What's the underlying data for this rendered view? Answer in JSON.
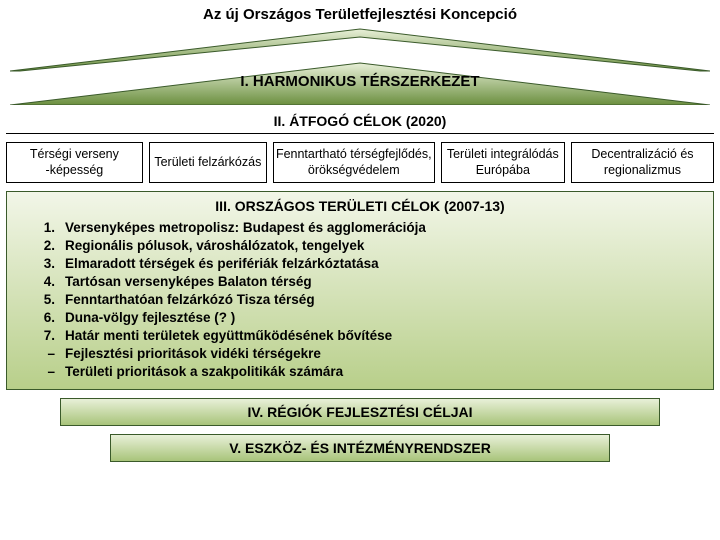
{
  "colors": {
    "roof_light": "#e8f0d8",
    "roof_dark": "#6b8f3f",
    "roof_stroke": "#3a5a2a",
    "band_top": "#f2f6e8",
    "band_bottom": "#b8cf8a",
    "bar_top": "#e8f0d8",
    "bar_bottom": "#a8c47a",
    "text": "#000000"
  },
  "title": "Az új Országos Területfejlesztési Koncepció",
  "roof_label": "I. HARMONIKUS TÉRSZERKEZET",
  "section2": {
    "header": "II. ÁTFOGÓ CÉLOK (2020)",
    "cells": [
      "Térségi verseny\n-képesség",
      "Területi felzárkózás",
      "Fenntartható térségfejlődés, örökségvédelem",
      "Területi integrálódás Európába",
      "Decentralizáció és regionalizmus"
    ]
  },
  "section3": {
    "header": "III. ORSZÁGOS TERÜLETI CÉLOK (2007-13)",
    "items": [
      {
        "num": "1.",
        "text": "Versenyképes metropolisz: Budapest és agglomerációja"
      },
      {
        "num": "2.",
        "text": "Regionális pólusok, városhálózatok, tengelyek"
      },
      {
        "num": "3.",
        "text": "Elmaradott térségek és perifériák felzárkóztatása"
      },
      {
        "num": "4.",
        "text": "Tartósan versenyképes Balaton térség"
      },
      {
        "num": "5.",
        "text": "Fenntarthatóan  felzárkózó Tisza térség"
      },
      {
        "num": "6.",
        "text": "Duna-völgy fejlesztése (? )"
      },
      {
        "num": "7.",
        "text": "Határ menti területek együttműködésének bővítése"
      },
      {
        "num": "–",
        "text": "Fejlesztési prioritások vidéki térségekre"
      },
      {
        "num": "–",
        "text": "Területi prioritások a szakpolitikák számára"
      }
    ]
  },
  "section4": "IV. RÉGIÓK FEJLESZTÉSI CÉLJAI",
  "section5": "V. ESZKÖZ- ÉS INTÉZMÉNYRENDSZER",
  "fonts": {
    "title_size": 15,
    "header_size": 14,
    "cell_size": 12.5,
    "list_size": 13.5
  }
}
